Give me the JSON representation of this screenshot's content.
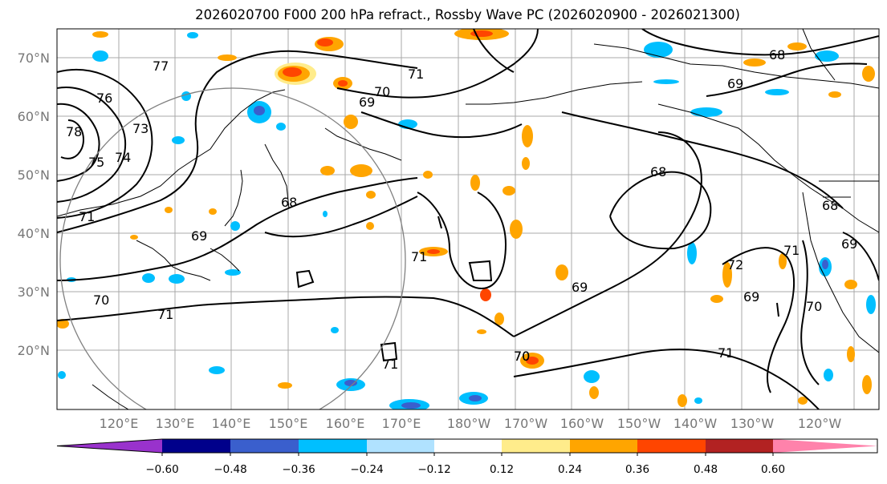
{
  "title": "2026020700 F000 200 hPa refract., Rossby Wave PC (2026020900 - 2026021300)",
  "lat_labels": [
    "70°N",
    "60°N",
    "50°N",
    "40°N",
    "30°N",
    "20°N"
  ],
  "lon_labels": [
    "120°E",
    "130°E",
    "140°E",
    "150°E",
    "160°E",
    "170°E",
    "180°W",
    "170°W",
    "160°W",
    "150°W",
    "140°W",
    "130°W",
    "120°W"
  ],
  "colorbar": {
    "ticks": [
      "−0.60",
      "−0.48",
      "−0.36",
      "−0.24",
      "−0.12",
      "0.12",
      "0.24",
      "0.36",
      "0.48",
      "0.60"
    ],
    "colors": [
      "#9932cc",
      "#00008b",
      "#3a5fcd",
      "#00bfff",
      "#b0e2ff",
      "#ffffff",
      "#ffec8b",
      "#ffa500",
      "#ff4500",
      "#b22222",
      "#ff82ab"
    ]
  },
  "contour_labels": [
    "77",
    "76",
    "78",
    "75",
    "74",
    "73",
    "71",
    "70",
    "69",
    "68",
    "71",
    "70",
    "69",
    "71",
    "68",
    "69",
    "71",
    "70",
    "71",
    "69",
    "70",
    "71",
    "68",
    "69",
    "68",
    "72",
    "71",
    "70",
    "69"
  ]
}
